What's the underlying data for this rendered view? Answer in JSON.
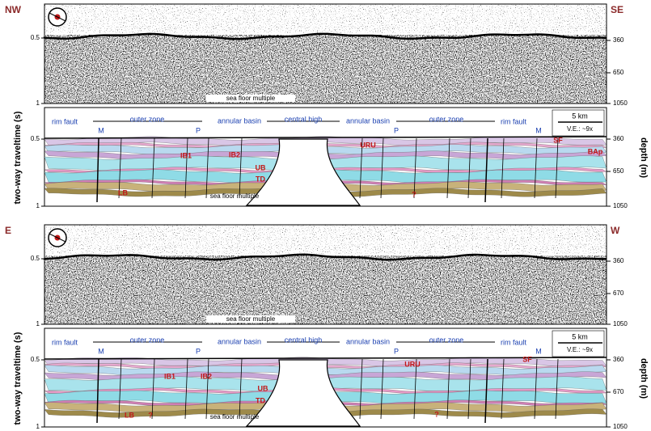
{
  "profiles": [
    {
      "ends": [
        "NW",
        "SE"
      ],
      "axis_left": "two-way traveltime (s)",
      "axis_right": "depth (m)",
      "raw": {
        "left_ticks": [
          "0.5",
          "1"
        ],
        "right_ticks": [
          "360",
          "650",
          "1050"
        ],
        "multiple": "sea floor multiple"
      },
      "interpreted": {
        "left_ticks": [
          "0.5",
          "1"
        ],
        "right_ticks": [
          "360",
          "650",
          "1050"
        ],
        "multiple": "sea floor multiple",
        "zones": [
          "rim fault",
          "M",
          "outer zone",
          "P",
          "annular basin",
          "central high",
          "annular basin",
          "P",
          "outer zone",
          "M",
          "rim fault"
        ],
        "units": [
          "SF",
          "BAp",
          "URU",
          "IB1",
          "IB2",
          "UB",
          "TD",
          "LB",
          "?"
        ],
        "scale": "5 km",
        "ve": "V.E.: ~9x"
      }
    },
    {
      "ends": [
        "E",
        "W"
      ],
      "axis_left": "two-way traveltime (s)",
      "axis_right": "depth (m)",
      "raw": {
        "left_ticks": [
          "0.5",
          "1"
        ],
        "right_ticks": [
          "360",
          "670",
          "1050"
        ],
        "multiple": "sea floor multiple"
      },
      "interpreted": {
        "left_ticks": [
          "0.5",
          "1"
        ],
        "right_ticks": [
          "360",
          "670",
          "1050"
        ],
        "multiple": "sea floor multiple",
        "zones": [
          "rim fault",
          "M",
          "outer zone",
          "P",
          "annular basin",
          "central high",
          "annular basin",
          "P",
          "outer zone",
          "M",
          "rim fault"
        ],
        "units": [
          "SF",
          "URU",
          "IB1",
          "IB2",
          "UB",
          "TD",
          "LB",
          "?",
          "?"
        ],
        "scale": "5 km",
        "ve": "V.E.: ~9x"
      }
    }
  ]
}
